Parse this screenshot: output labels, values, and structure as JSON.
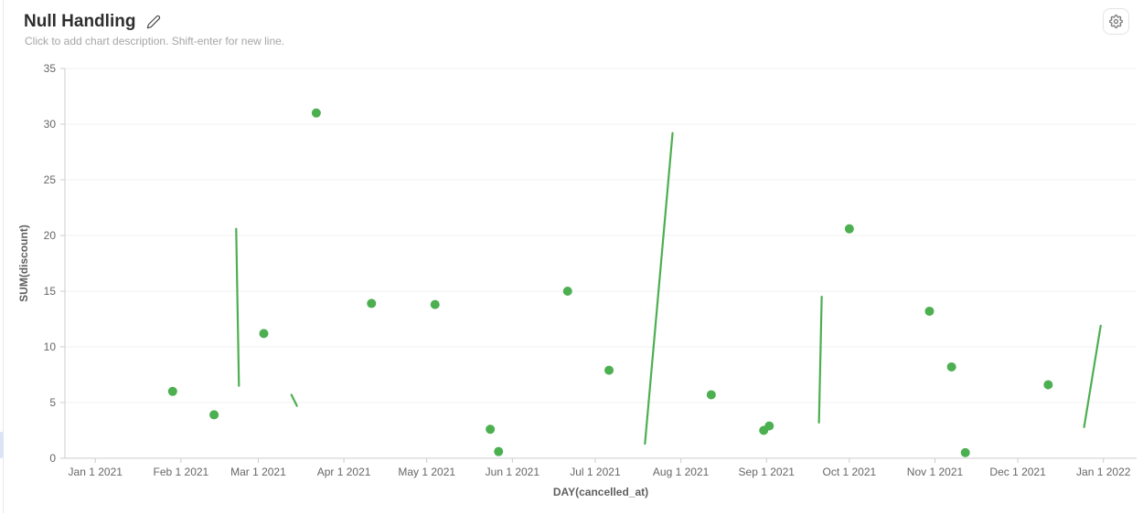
{
  "header": {
    "title": "Null Handling",
    "description": "Click to add chart description. Shift-enter for new line."
  },
  "toolbar": {
    "settings_icon": "gear-icon",
    "edit_icon": "pencil-icon"
  },
  "colors": {
    "series": "#4caf50",
    "axis": "#cccccc",
    "grid": "#f0f0f0",
    "tick_text": "#666666",
    "axis_name_text": "#5f5f5f",
    "title_text": "#2e2e2e",
    "description_text": "#a6a6a6",
    "left_accent": "#dbe3f6"
  },
  "chart_data": {
    "type": "scatter",
    "title": "Null Handling",
    "xlabel": "DAY(cancelled_at)",
    "ylabel": "SUM(discount)",
    "ylim": [
      0,
      35
    ],
    "y_ticks": [
      0,
      5,
      10,
      15,
      20,
      25,
      30,
      35
    ],
    "x_domain": [
      "2020-12-21",
      "2022-01-13"
    ],
    "grid": true,
    "legend": false,
    "x_ticks": [
      {
        "label": "Jan 1 2021",
        "date": "2021-01-01"
      },
      {
        "label": "Feb 1 2021",
        "date": "2021-02-01"
      },
      {
        "label": "Mar 1 2021",
        "date": "2021-03-01"
      },
      {
        "label": "Apr 1 2021",
        "date": "2021-04-01"
      },
      {
        "label": "May 1 2021",
        "date": "2021-05-01"
      },
      {
        "label": "Jun 1 2021",
        "date": "2021-06-01"
      },
      {
        "label": "Jul 1 2021",
        "date": "2021-07-01"
      },
      {
        "label": "Aug 1 2021",
        "date": "2021-08-01"
      },
      {
        "label": "Sep 1 2021",
        "date": "2021-09-01"
      },
      {
        "label": "Oct 1 2021",
        "date": "2021-10-01"
      },
      {
        "label": "Nov 1 2021",
        "date": "2021-11-01"
      },
      {
        "label": "Dec 1 2021",
        "date": "2021-12-01"
      },
      {
        "label": "Jan 1 2022",
        "date": "2022-01-01"
      }
    ],
    "series": [
      {
        "name": "SUM(discount)",
        "color": "#4caf50",
        "isolated_points": [
          {
            "date": "2021-01-29",
            "value": 6.0
          },
          {
            "date": "2021-02-13",
            "value": 3.9
          },
          {
            "date": "2021-03-03",
            "value": 11.2
          },
          {
            "date": "2021-03-22",
            "value": 31.0
          },
          {
            "date": "2021-04-11",
            "value": 13.9
          },
          {
            "date": "2021-05-04",
            "value": 13.8
          },
          {
            "date": "2021-05-24",
            "value": 2.6
          },
          {
            "date": "2021-05-27",
            "value": 0.6
          },
          {
            "date": "2021-06-21",
            "value": 15.0
          },
          {
            "date": "2021-07-06",
            "value": 7.9
          },
          {
            "date": "2021-08-12",
            "value": 5.7
          },
          {
            "date": "2021-08-31",
            "value": 2.5
          },
          {
            "date": "2021-09-02",
            "value": 2.9
          },
          {
            "date": "2021-10-01",
            "value": 20.6
          },
          {
            "date": "2021-10-30",
            "value": 13.2
          },
          {
            "date": "2021-11-07",
            "value": 8.2
          },
          {
            "date": "2021-11-12",
            "value": 0.5
          },
          {
            "date": "2021-12-12",
            "value": 6.6
          }
        ],
        "line_segments": [
          {
            "x1": "2021-02-21",
            "y1": 20.6,
            "x2": "2021-02-22",
            "y2": 6.5
          },
          {
            "x1": "2021-03-13",
            "y1": 5.7,
            "x2": "2021-03-15",
            "y2": 4.7
          },
          {
            "x1": "2021-07-19",
            "y1": 1.3,
            "x2": "2021-07-29",
            "y2": 29.2
          },
          {
            "x1": "2021-09-20",
            "y1": 3.2,
            "x2": "2021-09-21",
            "y2": 14.5
          },
          {
            "x1": "2021-12-25",
            "y1": 2.8,
            "x2": "2021-12-31",
            "y2": 11.9
          }
        ]
      }
    ]
  }
}
